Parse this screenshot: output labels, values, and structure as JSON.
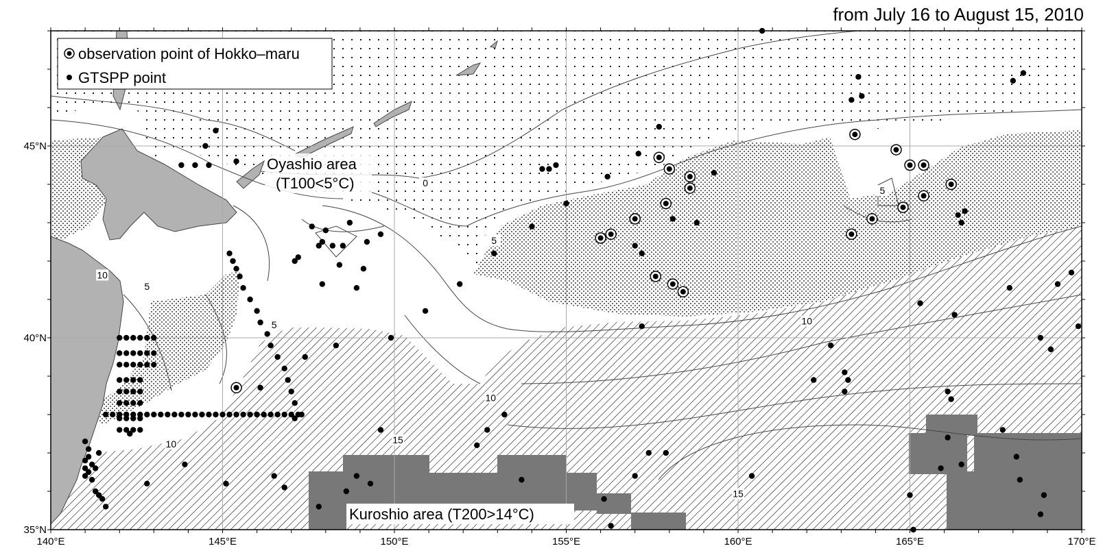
{
  "title": "from July 16 to August 15, 2010",
  "legend": {
    "hokko_label": "observation point of Hokko–maru",
    "gtspp_label": "GTSPP point"
  },
  "annotations": {
    "oyashio_line1": "Oyashio area",
    "oyashio_line2": "(T100<5°C)",
    "kuroshio": "Kuroshio area (T200>14°C)"
  },
  "axes": {
    "lon_ticks": [
      {
        "value": 140,
        "label": "140°E"
      },
      {
        "value": 145,
        "label": "145°E"
      },
      {
        "value": 150,
        "label": "150°E"
      },
      {
        "value": 155,
        "label": "155°E"
      },
      {
        "value": 160,
        "label": "160°E"
      },
      {
        "value": 165,
        "label": "165°E"
      },
      {
        "value": 170,
        "label": "170°E"
      }
    ],
    "lat_ticks": [
      {
        "value": 35,
        "label": "35°N"
      },
      {
        "value": 40,
        "label": "40°N"
      },
      {
        "value": 45,
        "label": "45°N"
      }
    ],
    "lon_range": [
      140,
      170
    ],
    "lat_range": [
      35,
      48
    ]
  },
  "contour_labels": [
    {
      "text": "0",
      "lon": 150.9,
      "lat": 44.0
    },
    {
      "text": "5",
      "lon": 152.9,
      "lat": 42.5
    },
    {
      "text": "5",
      "lon": 146.5,
      "lat": 40.3
    },
    {
      "text": "5",
      "lon": 164.2,
      "lat": 43.8
    },
    {
      "text": "5",
      "lon": 142.8,
      "lat": 41.3
    },
    {
      "text": "10",
      "lon": 141.5,
      "lat": 41.6
    },
    {
      "text": "10",
      "lon": 162.0,
      "lat": 40.4
    },
    {
      "text": "10",
      "lon": 152.8,
      "lat": 38.4
    },
    {
      "text": "10",
      "lon": 143.5,
      "lat": 37.2
    },
    {
      "text": "15",
      "lon": 160.0,
      "lat": 35.9
    },
    {
      "text": "15",
      "lon": 150.1,
      "lat": 37.3
    }
  ],
  "hokko_points": [
    [
      157.7,
      44.7
    ],
    [
      158.0,
      44.4
    ],
    [
      158.6,
      44.2
    ],
    [
      158.6,
      43.9
    ],
    [
      157.9,
      43.5
    ],
    [
      157.0,
      43.1
    ],
    [
      156.3,
      42.7
    ],
    [
      156.0,
      42.6
    ],
    [
      157.6,
      41.6
    ],
    [
      158.1,
      41.4
    ],
    [
      158.4,
      41.2
    ],
    [
      163.4,
      45.3
    ],
    [
      164.6,
      44.9
    ],
    [
      165.0,
      44.5
    ],
    [
      165.4,
      44.5
    ],
    [
      165.4,
      43.7
    ],
    [
      166.2,
      44.0
    ],
    [
      164.8,
      43.4
    ],
    [
      163.9,
      43.1
    ],
    [
      163.3,
      42.7
    ],
    [
      145.4,
      38.7
    ]
  ],
  "gtspp_points": [
    [
      144.8,
      45.4
    ],
    [
      144.5,
      45.0
    ],
    [
      144.6,
      44.5
    ],
    [
      145.4,
      44.6
    ],
    [
      143.8,
      44.5
    ],
    [
      144.2,
      44.5
    ],
    [
      147.6,
      42.9
    ],
    [
      148.0,
      42.8
    ],
    [
      147.9,
      42.5
    ],
    [
      148.2,
      42.4
    ],
    [
      148.5,
      42.4
    ],
    [
      147.8,
      42.4
    ],
    [
      147.2,
      42.1
    ],
    [
      147.1,
      42.0
    ],
    [
      148.7,
      43.0
    ],
    [
      149.2,
      42.5
    ],
    [
      149.6,
      42.7
    ],
    [
      148.4,
      41.9
    ],
    [
      147.9,
      41.4
    ],
    [
      149.1,
      41.8
    ],
    [
      148.9,
      41.3
    ],
    [
      145.2,
      42.2
    ],
    [
      145.3,
      42.0
    ],
    [
      145.4,
      41.8
    ],
    [
      145.5,
      41.6
    ],
    [
      145.6,
      41.3
    ],
    [
      145.8,
      41.0
    ],
    [
      146.0,
      40.7
    ],
    [
      146.1,
      40.4
    ],
    [
      146.3,
      40.1
    ],
    [
      146.4,
      39.8
    ],
    [
      146.6,
      39.5
    ],
    [
      146.8,
      39.2
    ],
    [
      146.9,
      38.9
    ],
    [
      147.0,
      38.6
    ],
    [
      147.1,
      38.3
    ],
    [
      147.3,
      38.0
    ],
    [
      147.4,
      39.5
    ],
    [
      148.3,
      39.8
    ],
    [
      149.9,
      40.0
    ],
    [
      150.9,
      40.7
    ],
    [
      151.9,
      41.4
    ],
    [
      152.9,
      42.2
    ],
    [
      154.0,
      42.9
    ],
    [
      155.0,
      43.5
    ],
    [
      156.2,
      44.2
    ],
    [
      157.1,
      44.8
    ],
    [
      154.3,
      44.4
    ],
    [
      154.5,
      44.4
    ],
    [
      154.7,
      44.5
    ],
    [
      157.7,
      45.5
    ],
    [
      158.1,
      43.1
    ],
    [
      158.8,
      43.0
    ],
    [
      159.3,
      44.3
    ],
    [
      157.2,
      40.3
    ],
    [
      157.0,
      42.4
    ],
    [
      157.2,
      42.2
    ],
    [
      160.7,
      48.0
    ],
    [
      163.3,
      46.2
    ],
    [
      163.5,
      46.8
    ],
    [
      163.6,
      46.3
    ],
    [
      168.0,
      46.7
    ],
    [
      168.3,
      46.9
    ],
    [
      166.4,
      43.2
    ],
    [
      166.5,
      43.0
    ],
    [
      166.6,
      43.3
    ],
    [
      162.7,
      39.8
    ],
    [
      163.1,
      39.1
    ],
    [
      163.2,
      38.9
    ],
    [
      163.1,
      38.6
    ],
    [
      162.2,
      38.9
    ],
    [
      165.3,
      40.9
    ],
    [
      166.3,
      40.6
    ],
    [
      167.9,
      41.3
    ],
    [
      169.3,
      41.4
    ],
    [
      169.7,
      41.7
    ],
    [
      169.9,
      40.3
    ],
    [
      168.8,
      40.0
    ],
    [
      169.1,
      39.7
    ],
    [
      166.1,
      38.6
    ],
    [
      166.2,
      38.4
    ],
    [
      167.7,
      37.6
    ],
    [
      168.1,
      36.9
    ],
    [
      166.1,
      37.4
    ],
    [
      166.5,
      36.7
    ],
    [
      168.2,
      36.3
    ],
    [
      168.9,
      35.9
    ],
    [
      168.8,
      35.4
    ],
    [
      165.9,
      36.6
    ],
    [
      165.0,
      35.9
    ],
    [
      165.1,
      35.0
    ],
    [
      160.4,
      36.4
    ],
    [
      157.4,
      37.0
    ],
    [
      157.9,
      37.0
    ],
    [
      157.0,
      36.4
    ],
    [
      156.1,
      35.8
    ],
    [
      156.3,
      35.1
    ],
    [
      153.7,
      36.3
    ],
    [
      153.2,
      38.0
    ],
    [
      152.7,
      37.6
    ],
    [
      152.4,
      37.2
    ],
    [
      149.6,
      37.6
    ],
    [
      149.3,
      36.2
    ],
    [
      148.9,
      36.4
    ],
    [
      148.6,
      36.0
    ],
    [
      147.8,
      35.6
    ],
    [
      146.8,
      36.1
    ],
    [
      146.5,
      36.4
    ],
    [
      145.1,
      36.2
    ],
    [
      143.9,
      36.7
    ],
    [
      142.8,
      36.2
    ],
    [
      142.3,
      37.5
    ],
    [
      145.4,
      38.7
    ],
    [
      147.1,
      37.9
    ],
    [
      146.1,
      38.7
    ]
  ],
  "dense_grid_lats": [
    40.0,
    39.6,
    39.3,
    38.9,
    38.6,
    38.3,
    37.9,
    37.6
  ],
  "section_38N": [
    141.6,
    141.8,
    142.0,
    142.2,
    142.4,
    142.6,
    142.8,
    143.0,
    143.2,
    143.4,
    143.6,
    143.8,
    144.0,
    144.2,
    144.4,
    144.6,
    144.8,
    145.0,
    145.2,
    145.4,
    145.6,
    145.8,
    146.0,
    146.2,
    146.4,
    146.6,
    146.8,
    147.0,
    147.2
  ],
  "coastal_column": [
    [
      141.0,
      37.3
    ],
    [
      141.1,
      37.1
    ],
    [
      141.1,
      36.9
    ],
    [
      141.0,
      36.8
    ],
    [
      141.0,
      36.6
    ],
    [
      141.1,
      36.5
    ],
    [
      141.0,
      36.4
    ],
    [
      141.2,
      36.3
    ],
    [
      141.3,
      36.0
    ],
    [
      141.5,
      35.8
    ],
    [
      141.6,
      35.6
    ],
    [
      141.4,
      35.9
    ],
    [
      141.2,
      36.7
    ],
    [
      141.4,
      37.0
    ],
    [
      141.3,
      36.6
    ]
  ],
  "colors": {
    "land": "#b2b2b2",
    "kuroshio": "#787878",
    "hatch": "#000000",
    "grid": "#a8a8a8"
  }
}
